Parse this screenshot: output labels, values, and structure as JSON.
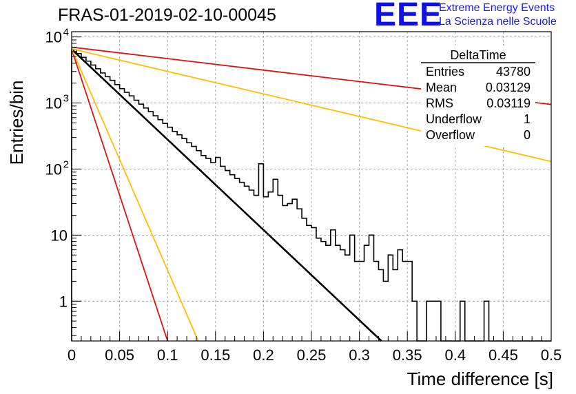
{
  "header": {
    "title": "FRAS-01-2019-02-10-00045",
    "logo": {
      "mark": "EEE",
      "line1": "Extreme Energy Events",
      "line2": "La Scienza nelle Scuole",
      "color": "#1010e6"
    }
  },
  "stats_box": {
    "title": "DeltaTime",
    "rows": [
      {
        "label": "Entries",
        "value": "43780"
      },
      {
        "label": "Mean",
        "value": "0.03129"
      },
      {
        "label": "RMS",
        "value": "0.03119"
      },
      {
        "label": "Underflow",
        "value": "1"
      },
      {
        "label": "Overflow",
        "value": "0"
      }
    ]
  },
  "chart_data": {
    "type": "line",
    "title": "FRAS-01-2019-02-10-00045",
    "xlabel": "Time difference [s]",
    "ylabel": "Entries/bin",
    "xlim": [
      0,
      0.5
    ],
    "ylim": [
      0.25,
      12000
    ],
    "y_scale": "log",
    "grid": true,
    "x_ticks": [
      "0",
      "0.05",
      "0.1",
      "0.15",
      "0.2",
      "0.25",
      "0.3",
      "0.35",
      "0.4",
      "0.45",
      "0.5"
    ],
    "y_ticks": [
      {
        "value": 1,
        "base": "1",
        "exp": ""
      },
      {
        "value": 10,
        "base": "10",
        "exp": ""
      },
      {
        "value": 100,
        "base": "10",
        "exp": "2"
      },
      {
        "value": 1000,
        "base": "10",
        "exp": "3"
      },
      {
        "value": 10000,
        "base": "10",
        "exp": "4"
      }
    ],
    "histogram": {
      "color": "#000000",
      "bin_width": 0.005,
      "bins_start": 0,
      "counts": [
        6400,
        5600,
        4900,
        4300,
        3750,
        3300,
        2850,
        2500,
        2200,
        1900,
        1650,
        1450,
        1280,
        1100,
        960,
        840,
        740,
        640,
        560,
        490,
        430,
        370,
        330,
        290,
        250,
        220,
        190,
        160,
        145,
        125,
        150,
        110,
        95,
        82,
        72,
        63,
        55,
        48,
        40,
        120,
        38,
        45,
        70,
        40,
        28,
        30,
        35,
        25,
        18,
        14,
        13,
        9,
        8,
        7,
        12,
        7,
        6,
        5,
        10,
        4,
        4,
        7,
        10,
        4,
        3,
        2,
        5,
        3,
        6,
        4,
        4,
        1,
        0.2,
        0.2,
        1,
        1,
        1,
        0.2,
        0.2,
        0.2,
        0.2,
        1,
        0.2,
        0.2,
        0.2,
        0.2,
        1,
        0.2,
        0.2,
        0.2,
        0.2,
        0.2,
        0.2,
        0.2,
        0.2,
        0.2,
        0.2,
        0.2,
        0.2,
        0.2
      ]
    },
    "series": [
      {
        "color": "#000000",
        "x": [
          0,
          0.323
        ],
        "y": [
          6500,
          0.25
        ]
      },
      {
        "color": "#dd1111",
        "x": [
          0,
          0.5
        ],
        "y": [
          7000,
          950
        ]
      },
      {
        "color": "#ffbf00",
        "x": [
          0,
          0.5
        ],
        "y": [
          6600,
          130
        ]
      },
      {
        "color": "#dd1111",
        "x": [
          0,
          0.1
        ],
        "y": [
          6500,
          0.25
        ]
      },
      {
        "color": "#ffbf00",
        "x": [
          0,
          0.132
        ],
        "y": [
          6600,
          0.25
        ]
      }
    ]
  }
}
